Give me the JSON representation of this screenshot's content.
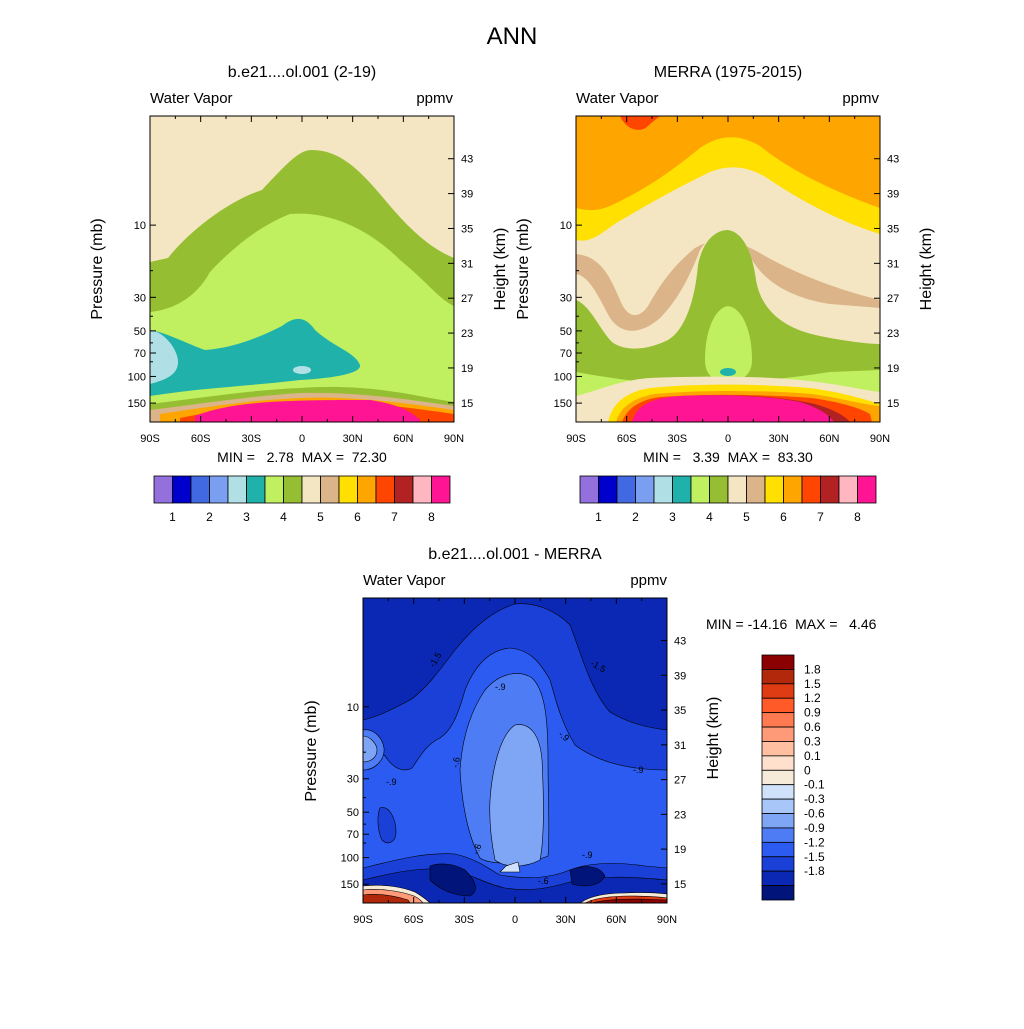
{
  "page_title": "ANN",
  "colors": {
    "panel_scale": [
      "#9370db",
      "#0000cd",
      "#4169e1",
      "#7b9ff0",
      "#b0e0e6",
      "#20b2aa",
      "#c0f060",
      "#96be32",
      "#f5e6c3",
      "#dcb489",
      "#ffe000",
      "#ffa500",
      "#ff4500",
      "#b22222",
      "#ffb6c1",
      "#ff1493"
    ],
    "diff_scale": [
      "#8b0000",
      "#b2280a",
      "#e03c14",
      "#ff5a28",
      "#ff7a50",
      "#ff9a78",
      "#ffbfa0",
      "#ffe0cc",
      "#f6ead8",
      "#cfe1fb",
      "#a9c6f8",
      "#7fa6f5",
      "#4d7cf5",
      "#2b5bf0",
      "#1a40d8",
      "#0a28b4",
      "#00147a"
    ]
  },
  "chart_data": [
    {
      "type": "heatmap",
      "title": "b.e21....ol.001 (2-19)",
      "left_label": "Water Vapor",
      "right_label": "ppmv",
      "ylabel": "Pressure (mb)",
      "ylabel_right": "Height (km)",
      "x_ticks": [
        "90S",
        "60S",
        "30S",
        "0",
        "30N",
        "60N",
        "90N"
      ],
      "y_ticks": [
        "10",
        "30",
        "50",
        "70",
        "100",
        "150"
      ],
      "height_ticks": [
        "43",
        "39",
        "35",
        "31",
        "27",
        "23",
        "19",
        "15"
      ],
      "stats": "MIN =   2.78  MAX =  72.30",
      "colorbar_labels": [
        "1",
        "2",
        "3",
        "4",
        "5",
        "6",
        "7",
        "8"
      ]
    },
    {
      "type": "heatmap",
      "title": "MERRA (1975-2015)",
      "left_label": "Water Vapor",
      "right_label": "ppmv",
      "ylabel": "Pressure (mb)",
      "ylabel_right": "Height (km)",
      "x_ticks": [
        "90S",
        "60S",
        "30S",
        "0",
        "30N",
        "60N",
        "90N"
      ],
      "y_ticks": [
        "10",
        "30",
        "50",
        "70",
        "100",
        "150"
      ],
      "height_ticks": [
        "43",
        "39",
        "35",
        "31",
        "27",
        "23",
        "19",
        "15"
      ],
      "stats": "MIN =   3.39  MAX =  83.30",
      "colorbar_labels": [
        "1",
        "2",
        "3",
        "4",
        "5",
        "6",
        "7",
        "8"
      ]
    },
    {
      "type": "heatmap",
      "title": "b.e21....ol.001 - MERRA",
      "left_label": "Water Vapor",
      "right_label": "ppmv",
      "ylabel": "Pressure (mb)",
      "ylabel_right": "Height (km)",
      "x_ticks": [
        "90S",
        "60S",
        "30S",
        "0",
        "30N",
        "60N",
        "90N"
      ],
      "y_ticks": [
        "10",
        "30",
        "50",
        "70",
        "100",
        "150"
      ],
      "height_ticks": [
        "43",
        "39",
        "35",
        "31",
        "27",
        "23",
        "19",
        "15"
      ],
      "stats": "MIN = -14.16  MAX =   4.46",
      "colorbar_labels": [
        "1.8",
        "1.5",
        "1.2",
        "0.9",
        "0.6",
        "0.3",
        "0.1",
        "0",
        "-0.1",
        "-0.3",
        "-0.6",
        "-0.9",
        "-1.2",
        "-1.5",
        "-1.8"
      ],
      "contour_labels": [
        "-1.5",
        "-.9",
        "-.9",
        "-.6",
        "-1.5",
        "-.9",
        "-.9",
        "-.6",
        "-.6",
        "-.9"
      ]
    }
  ]
}
